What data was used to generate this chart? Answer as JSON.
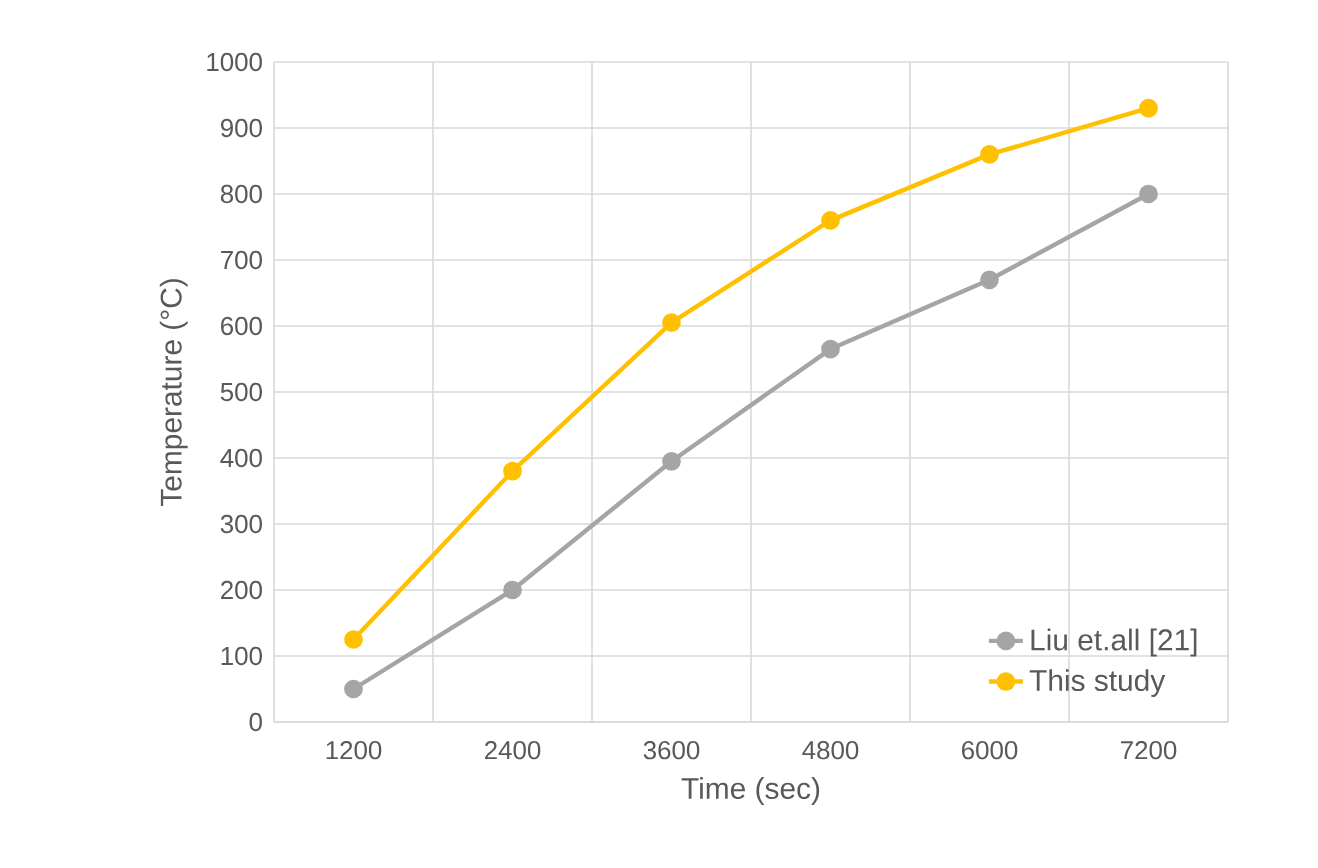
{
  "chart_data": {
    "type": "line",
    "xlabel": "Time (sec)",
    "ylabel": "Temperature (°C)",
    "categories": [
      "1200",
      "2400",
      "3600",
      "4800",
      "6000",
      "7200"
    ],
    "series": [
      {
        "name": "Liu et.all [21]",
        "color": "#a5a5a5",
        "values": [
          50,
          200,
          395,
          565,
          670,
          800
        ]
      },
      {
        "name": "This study",
        "color": "#ffc000",
        "values": [
          125,
          380,
          605,
          760,
          860,
          930
        ]
      }
    ],
    "ylim": [
      0,
      1000
    ],
    "yticks": [
      0,
      100,
      200,
      300,
      400,
      500,
      600,
      700,
      800,
      900,
      1000
    ],
    "grid": true,
    "legend": "bottom right",
    "marker": "circle",
    "line_style": "solid"
  }
}
